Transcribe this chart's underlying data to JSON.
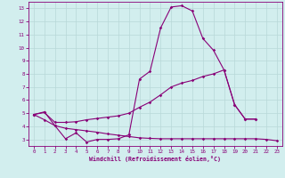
{
  "xlabel": "Windchill (Refroidissement éolien,°C)",
  "xlim": [
    -0.5,
    23.5
  ],
  "ylim": [
    2.5,
    13.5
  ],
  "yticks": [
    3,
    4,
    5,
    6,
    7,
    8,
    9,
    10,
    11,
    12,
    13
  ],
  "xticks": [
    0,
    1,
    2,
    3,
    4,
    5,
    6,
    7,
    8,
    9,
    10,
    11,
    12,
    13,
    14,
    15,
    16,
    17,
    18,
    19,
    20,
    21,
    22,
    23
  ],
  "bg_color": "#d2eeee",
  "grid_color": "#b8d8d8",
  "line_color": "#880077",
  "line1_x": [
    0,
    1,
    2,
    3,
    4,
    5,
    6,
    7,
    8,
    9,
    10,
    11,
    12,
    13,
    14,
    15,
    16,
    17,
    18,
    19,
    20,
    21
  ],
  "line1_y": [
    4.9,
    5.1,
    4.05,
    3.05,
    3.5,
    2.8,
    3.0,
    3.0,
    3.05,
    3.35,
    7.6,
    8.2,
    11.5,
    13.1,
    13.2,
    12.8,
    10.7,
    9.8,
    8.3,
    5.65,
    4.55,
    4.55
  ],
  "line2_x": [
    0,
    1,
    2,
    3,
    4,
    5,
    6,
    7,
    8,
    9,
    10,
    11,
    12,
    13,
    14,
    15,
    16,
    17,
    18,
    19,
    20,
    21
  ],
  "line2_y": [
    4.9,
    5.05,
    4.3,
    4.3,
    4.35,
    4.5,
    4.6,
    4.7,
    4.8,
    5.0,
    5.45,
    5.85,
    6.4,
    7.0,
    7.3,
    7.5,
    7.8,
    8.0,
    8.3,
    5.65,
    4.55,
    4.55
  ],
  "line3_x": [
    0,
    1,
    2,
    3,
    4,
    5,
    6,
    7,
    8,
    9,
    10,
    11,
    12,
    13,
    14,
    15,
    16,
    17,
    18,
    19,
    20,
    21,
    22,
    23
  ],
  "line3_y": [
    4.9,
    4.5,
    4.05,
    3.85,
    3.75,
    3.65,
    3.55,
    3.42,
    3.32,
    3.22,
    3.12,
    3.08,
    3.05,
    3.05,
    3.05,
    3.05,
    3.05,
    3.05,
    3.05,
    3.05,
    3.05,
    3.05,
    3.0,
    2.9
  ]
}
